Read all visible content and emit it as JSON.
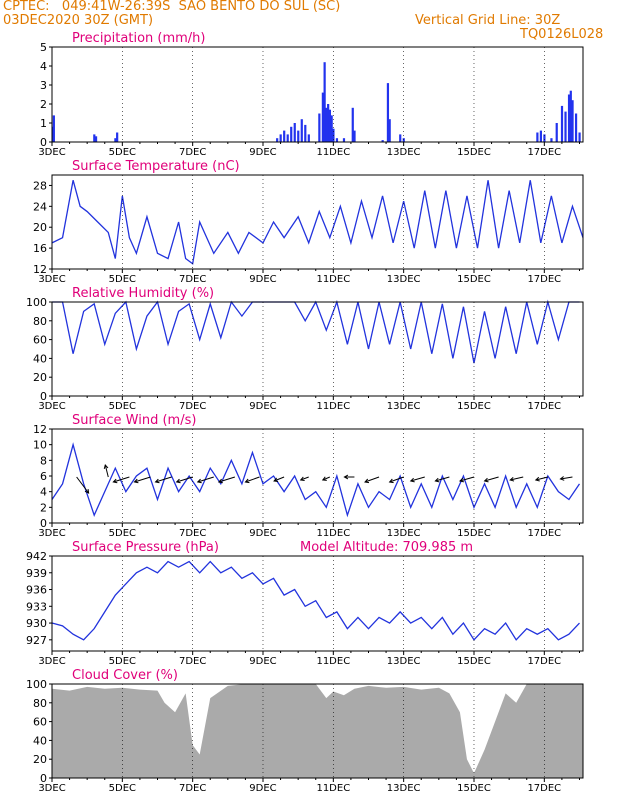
{
  "header": {
    "line1": "CPTEC:   049:41W-26:39S  SAO BENTO DO SUL (SC)",
    "line2": "03DEC2020 30Z (GMT)",
    "grid_note": "Vertical Grid Line: 30Z",
    "code": "TQ0126L028"
  },
  "colors": {
    "header": "#e07a00",
    "title": "#e0007a",
    "line": "#2233dd",
    "bar": "#2233ee",
    "cloud": "#aaaaaa",
    "arrow": "#000000"
  },
  "x_ticks": [
    "3DEC",
    "5DEC",
    "7DEC",
    "9DEC",
    "11DEC",
    "13DEC",
    "15DEC",
    "17DEC"
  ],
  "chart_data": [
    {
      "id": "precip",
      "type": "bar",
      "title": "Precipitation (mm/h)",
      "ylim": [
        0,
        5
      ],
      "yticks": [
        "0",
        "1",
        "2",
        "3",
        "4",
        "5"
      ],
      "x_start_day": 3,
      "x_end_day": 18.1,
      "x": [
        3.02,
        3.05,
        4.2,
        4.25,
        4.8,
        4.85,
        9.4,
        9.5,
        9.6,
        9.7,
        9.8,
        9.9,
        10.0,
        10.1,
        10.2,
        10.3,
        10.6,
        10.7,
        10.75,
        10.8,
        10.85,
        10.9,
        10.95,
        11.0,
        11.1,
        11.3,
        11.55,
        11.6,
        12.4,
        12.55,
        12.6,
        12.9,
        13.0,
        16.8,
        16.9,
        17.0,
        17.2,
        17.35,
        17.5,
        17.6,
        17.7,
        17.75,
        17.8,
        17.9,
        18.0
      ],
      "values": [
        0.8,
        1.4,
        0.4,
        0.3,
        0.2,
        0.5,
        0.2,
        0.4,
        0.6,
        0.4,
        0.8,
        1.0,
        0.6,
        1.2,
        0.9,
        0.4,
        1.5,
        2.6,
        4.2,
        1.8,
        2.0,
        1.7,
        1.4,
        0.7,
        0.2,
        0.2,
        1.8,
        0.6,
        0.1,
        3.1,
        1.2,
        0.4,
        0.2,
        0.5,
        0.6,
        0.4,
        0.2,
        1.0,
        1.9,
        1.6,
        2.5,
        2.7,
        2.2,
        1.5,
        0.5
      ]
    },
    {
      "id": "temp",
      "type": "line",
      "title": "Surface Temperature (nC)",
      "ylim": [
        12,
        30
      ],
      "yticks": [
        "12",
        "16",
        "20",
        "24",
        "28"
      ],
      "x": [
        3.0,
        3.3,
        3.6,
        3.8,
        4.0,
        4.3,
        4.6,
        4.8,
        5.0,
        5.2,
        5.4,
        5.7,
        6.0,
        6.3,
        6.6,
        6.8,
        7.0,
        7.2,
        7.6,
        8.0,
        8.3,
        8.6,
        9.0,
        9.3,
        9.6,
        10.0,
        10.3,
        10.6,
        10.9,
        11.2,
        11.5,
        11.8,
        12.1,
        12.4,
        12.7,
        13.0,
        13.3,
        13.6,
        13.9,
        14.2,
        14.5,
        14.8,
        15.1,
        15.4,
        15.7,
        16.0,
        16.3,
        16.6,
        16.9,
        17.2,
        17.5,
        17.8,
        18.1
      ],
      "values": [
        17,
        18,
        29,
        24,
        23,
        21,
        19,
        14,
        26,
        18,
        15,
        22,
        15,
        14,
        21,
        14,
        13,
        21,
        15,
        19,
        15,
        19,
        17,
        21,
        18,
        22,
        17,
        23,
        18,
        24,
        17,
        25,
        18,
        26,
        17,
        25,
        16,
        27,
        16,
        27,
        16,
        26,
        16,
        29,
        16,
        27,
        17,
        29,
        17,
        26,
        17,
        24,
        18
      ]
    },
    {
      "id": "rh",
      "type": "line",
      "title": "Relative Humidity (%)",
      "ylim": [
        0,
        100
      ],
      "yticks": [
        "0",
        "20",
        "40",
        "60",
        "80",
        "100"
      ],
      "x": [
        3.0,
        3.3,
        3.6,
        3.9,
        4.2,
        4.5,
        4.8,
        5.1,
        5.4,
        5.7,
        6.0,
        6.3,
        6.6,
        6.9,
        7.2,
        7.5,
        7.8,
        8.1,
        8.4,
        8.7,
        9.0,
        9.3,
        9.6,
        9.9,
        10.2,
        10.5,
        10.8,
        11.1,
        11.4,
        11.7,
        12.0,
        12.3,
        12.6,
        12.9,
        13.2,
        13.5,
        13.8,
        14.1,
        14.4,
        14.7,
        15.0,
        15.3,
        15.6,
        15.9,
        16.2,
        16.5,
        16.8,
        17.1,
        17.4,
        17.7,
        18.0
      ],
      "values": [
        100,
        100,
        45,
        90,
        98,
        55,
        88,
        100,
        50,
        85,
        100,
        55,
        90,
        98,
        60,
        98,
        62,
        100,
        85,
        100,
        100,
        100,
        100,
        100,
        80,
        100,
        70,
        100,
        55,
        100,
        50,
        100,
        55,
        100,
        50,
        100,
        45,
        98,
        40,
        95,
        35,
        90,
        40,
        95,
        45,
        100,
        55,
        100,
        60,
        100,
        100
      ]
    },
    {
      "id": "wind",
      "type": "line",
      "title": "Surface Wind (m/s)",
      "ylim": [
        0,
        12
      ],
      "yticks": [
        "0",
        "2",
        "4",
        "6",
        "8",
        "10",
        "12"
      ],
      "x": [
        3.0,
        3.3,
        3.6,
        3.9,
        4.2,
        4.5,
        4.8,
        5.1,
        5.4,
        5.7,
        6.0,
        6.3,
        6.6,
        6.9,
        7.2,
        7.5,
        7.8,
        8.1,
        8.4,
        8.7,
        9.0,
        9.3,
        9.6,
        9.9,
        10.2,
        10.5,
        10.8,
        11.1,
        11.4,
        11.7,
        12.0,
        12.3,
        12.6,
        12.9,
        13.2,
        13.5,
        13.8,
        14.1,
        14.4,
        14.7,
        15.0,
        15.3,
        15.6,
        15.9,
        16.2,
        16.5,
        16.8,
        17.1,
        17.4,
        17.7,
        18.0
      ],
      "values": [
        3,
        5,
        10,
        5,
        1,
        4,
        7,
        4,
        6,
        7,
        3,
        7,
        4,
        6,
        4,
        7,
        5,
        8,
        5,
        9,
        5,
        6,
        4,
        6,
        3,
        4,
        2,
        6,
        1,
        5,
        2,
        4,
        3,
        6,
        2,
        5,
        2,
        6,
        3,
        6,
        2,
        5,
        2,
        6,
        2,
        5,
        2,
        6,
        4,
        3,
        5
      ],
      "arrows": [
        {
          "day": 3.7,
          "dx": 12,
          "dy": 16
        },
        {
          "day": 4.6,
          "dx": -3,
          "dy": -12
        },
        {
          "day": 5.2,
          "dx": -16,
          "dy": 5
        },
        {
          "day": 5.8,
          "dx": -16,
          "dy": 5
        },
        {
          "day": 6.4,
          "dx": -16,
          "dy": 5
        },
        {
          "day": 7.0,
          "dx": -16,
          "dy": 5
        },
        {
          "day": 7.6,
          "dx": -16,
          "dy": 5
        },
        {
          "day": 8.2,
          "dx": -16,
          "dy": 5
        },
        {
          "day": 8.9,
          "dx": -14,
          "dy": 5
        },
        {
          "day": 9.6,
          "dx": -10,
          "dy": 4
        },
        {
          "day": 10.3,
          "dx": -8,
          "dy": 3
        },
        {
          "day": 10.9,
          "dx": -7,
          "dy": 3
        },
        {
          "day": 11.6,
          "dx": -10,
          "dy": 0
        },
        {
          "day": 12.3,
          "dx": -14,
          "dy": 5
        },
        {
          "day": 13.0,
          "dx": -14,
          "dy": 5
        },
        {
          "day": 13.6,
          "dx": -14,
          "dy": 4
        },
        {
          "day": 14.3,
          "dx": -14,
          "dy": 4
        },
        {
          "day": 15.0,
          "dx": -14,
          "dy": 4
        },
        {
          "day": 15.7,
          "dx": -14,
          "dy": 4
        },
        {
          "day": 16.4,
          "dx": -13,
          "dy": 3
        },
        {
          "day": 17.1,
          "dx": -12,
          "dy": 3
        },
        {
          "day": 17.8,
          "dx": -12,
          "dy": 2
        }
      ]
    },
    {
      "id": "pres",
      "type": "line",
      "title": "Surface Pressure (hPa)",
      "extra_label": "Model Altitude: 709.985 m",
      "ylim": [
        925,
        942
      ],
      "yticks": [
        "927",
        "930",
        "933",
        "936",
        "939",
        "942"
      ],
      "x": [
        3.0,
        3.3,
        3.6,
        3.9,
        4.2,
        4.5,
        4.8,
        5.1,
        5.4,
        5.7,
        6.0,
        6.3,
        6.6,
        6.9,
        7.2,
        7.5,
        7.8,
        8.1,
        8.4,
        8.7,
        9.0,
        9.3,
        9.6,
        9.9,
        10.2,
        10.5,
        10.8,
        11.1,
        11.4,
        11.7,
        12.0,
        12.3,
        12.6,
        12.9,
        13.2,
        13.5,
        13.8,
        14.1,
        14.4,
        14.7,
        15.0,
        15.3,
        15.6,
        15.9,
        16.2,
        16.5,
        16.8,
        17.1,
        17.4,
        17.7,
        18.0
      ],
      "values": [
        930,
        929.5,
        928,
        927,
        929,
        932,
        935,
        937,
        939,
        940,
        939,
        941,
        940,
        941,
        939,
        941,
        939,
        940,
        938,
        939,
        937,
        938,
        935,
        936,
        933,
        934,
        931,
        932,
        929,
        931,
        929,
        931,
        930,
        932,
        930,
        931,
        929,
        931,
        928,
        930,
        927,
        929,
        928,
        930,
        927,
        929,
        928,
        929,
        927,
        928,
        930
      ]
    },
    {
      "id": "cloud",
      "type": "area",
      "title": "Cloud Cover (%)",
      "ylim": [
        0,
        100
      ],
      "yticks": [
        "0",
        "20",
        "40",
        "60",
        "80",
        "100"
      ],
      "x": [
        3.0,
        3.5,
        4.0,
        4.5,
        5.0,
        5.5,
        6.0,
        6.2,
        6.5,
        6.8,
        7.0,
        7.2,
        7.5,
        8.0,
        8.5,
        9.0,
        9.5,
        10.0,
        10.5,
        10.8,
        11.0,
        11.3,
        11.6,
        12.0,
        12.5,
        13.0,
        13.5,
        14.0,
        14.3,
        14.6,
        14.8,
        15.0,
        15.3,
        15.6,
        15.9,
        16.2,
        16.5,
        17.0,
        17.5,
        18.0,
        18.1
      ],
      "values": [
        95,
        93,
        97,
        95,
        96,
        94,
        93,
        80,
        70,
        90,
        35,
        25,
        85,
        98,
        100,
        100,
        100,
        100,
        100,
        85,
        92,
        88,
        95,
        98,
        96,
        97,
        94,
        96,
        90,
        70,
        20,
        5,
        30,
        60,
        90,
        80,
        100,
        100,
        100,
        100,
        100
      ]
    }
  ]
}
